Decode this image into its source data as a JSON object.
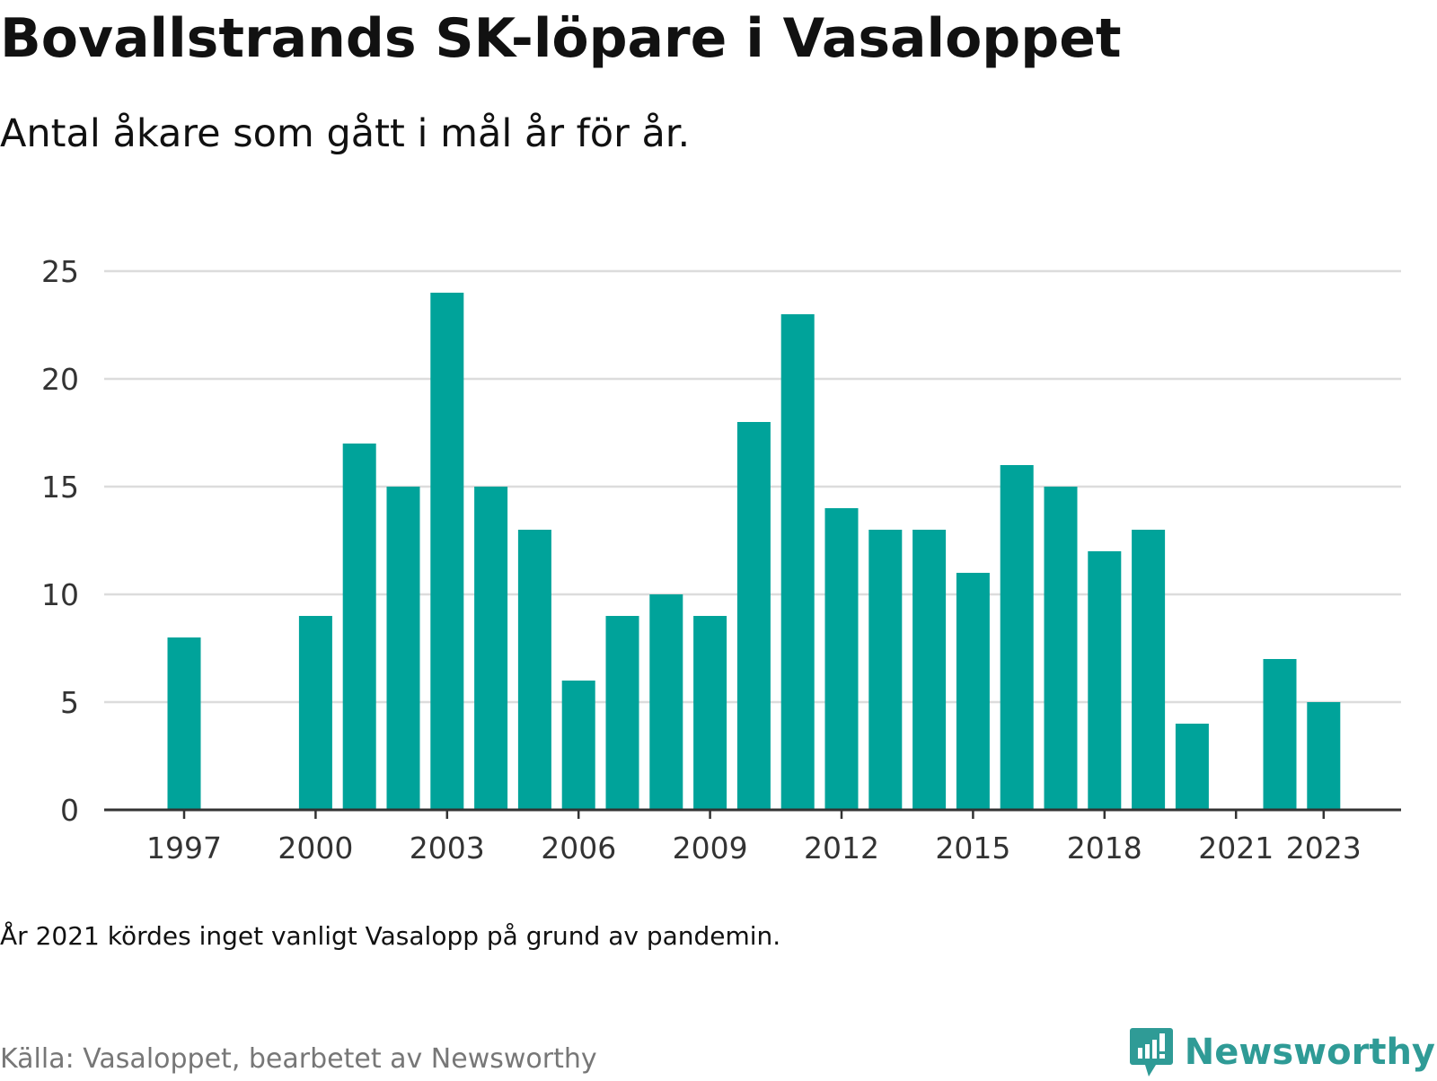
{
  "title": "Bovallstrands SK-löpare i Vasaloppet",
  "subtitle": "Antal åkare som gått i mål år för år.",
  "note": "År 2021 kördes inget vanligt Vasalopp på grund av pandemin.",
  "source": "Källa: Vasaloppet, bearbetet av Newsworthy",
  "brand": {
    "name": "Newsworthy",
    "icon": "newsworthy-logo-icon",
    "color": "#2f9b96"
  },
  "chart_data": {
    "type": "bar",
    "title": "Bovallstrands SK-löpare i Vasaloppet",
    "subtitle": "Antal åkare som gått i mål år för år.",
    "x": [
      1997,
      1998,
      1999,
      2000,
      2001,
      2002,
      2003,
      2004,
      2005,
      2006,
      2007,
      2008,
      2009,
      2010,
      2011,
      2012,
      2013,
      2014,
      2015,
      2016,
      2017,
      2018,
      2019,
      2020,
      2021,
      2022,
      2023
    ],
    "values": [
      8,
      null,
      null,
      9,
      17,
      15,
      24,
      15,
      13,
      6,
      9,
      10,
      9,
      18,
      23,
      14,
      13,
      13,
      11,
      16,
      15,
      12,
      13,
      4,
      null,
      7,
      5
    ],
    "x_ticks": [
      1997,
      2000,
      2003,
      2006,
      2009,
      2012,
      2015,
      2018,
      2021,
      2023
    ],
    "y_ticks": [
      0,
      5,
      10,
      15,
      20,
      25
    ],
    "ylim": [
      0,
      25
    ],
    "grid": true,
    "bar_color": "#00a39a",
    "xlabel": "",
    "ylabel": ""
  }
}
